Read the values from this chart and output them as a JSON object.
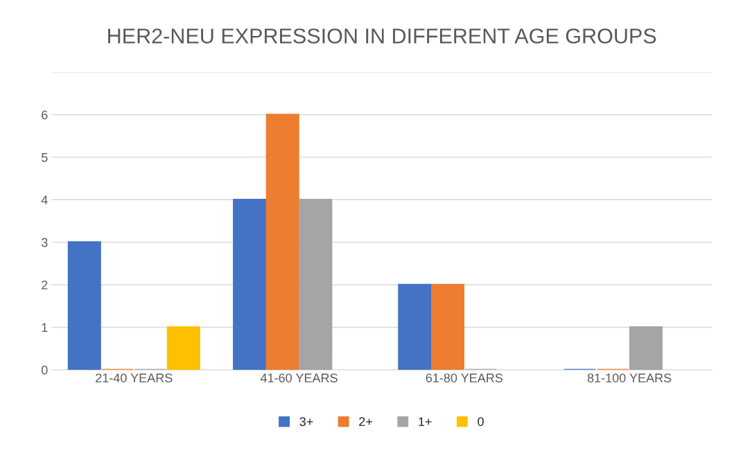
{
  "chart_data": {
    "type": "bar",
    "title": "HER2-NEU EXPRESSION IN DIFFERENT AGE GROUPS",
    "categories": [
      "21-40 YEARS",
      "41-60 YEARS",
      "61-80 YEARS",
      "81-100 YEARS"
    ],
    "series": [
      {
        "name": "3+",
        "color": "#4472c4",
        "values": [
          3,
          4,
          2,
          0
        ]
      },
      {
        "name": "2+",
        "color": "#ed7d31",
        "values": [
          0,
          6,
          2,
          0
        ]
      },
      {
        "name": "1+",
        "color": "#a5a5a5",
        "values": [
          0,
          4,
          0,
          1
        ]
      },
      {
        "name": "0",
        "color": "#ffc000",
        "values": [
          1,
          null,
          null,
          null
        ]
      }
    ],
    "ylim": [
      0,
      7
    ],
    "yticks": [
      0,
      1,
      2,
      3,
      4,
      5,
      6,
      {
        "value": 7,
        "label": null
      }
    ],
    "grid": "y",
    "legend": "bottom"
  }
}
